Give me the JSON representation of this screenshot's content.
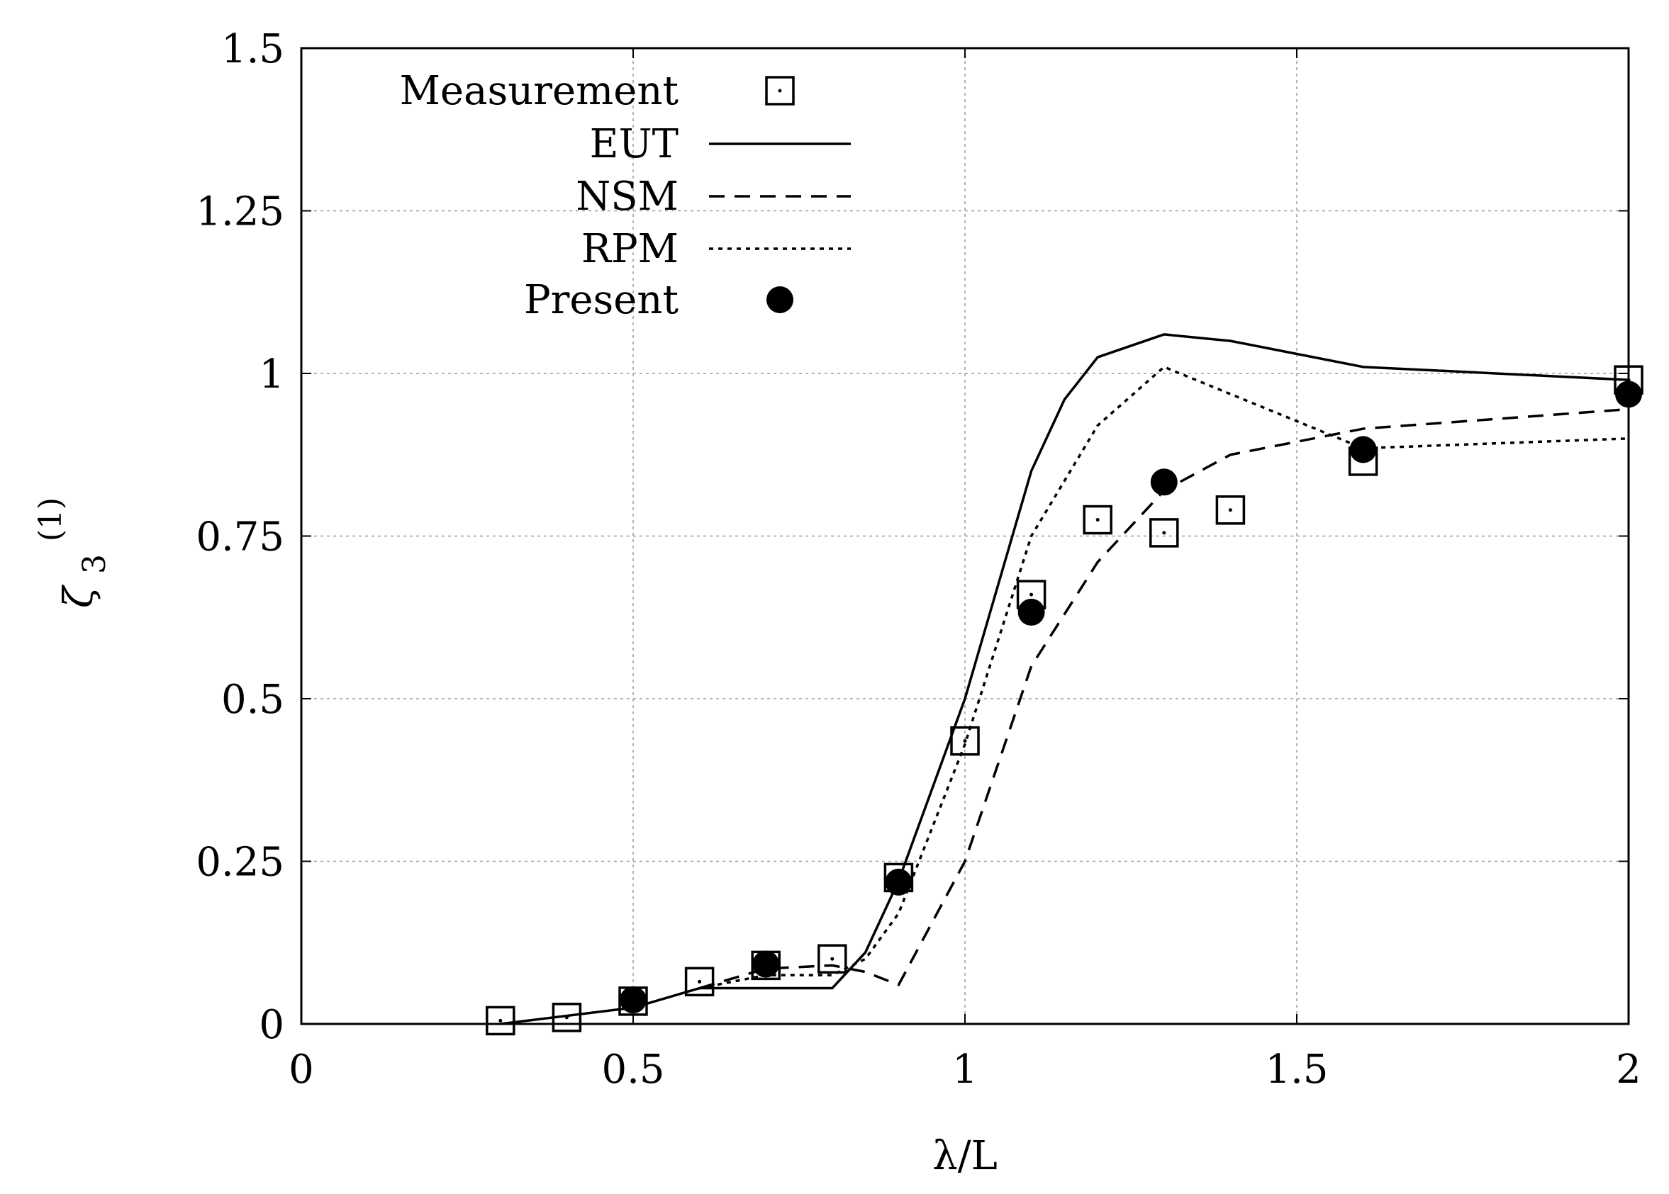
{
  "chart_data": {
    "type": "line",
    "title": "",
    "xlabel": "λ/L",
    "ylabel": {
      "base": "ζ",
      "subscript": "3",
      "superscript": "(1)"
    },
    "xlim": [
      0,
      2
    ],
    "ylim": [
      0,
      1.5
    ],
    "grid": true,
    "legend_position": "top-left",
    "x_ticks": [
      {
        "value": 0,
        "label": "0"
      },
      {
        "value": 0.5,
        "label": "0.5"
      },
      {
        "value": 1,
        "label": "1"
      },
      {
        "value": 1.5,
        "label": "1.5"
      },
      {
        "value": 2,
        "label": "2"
      }
    ],
    "y_ticks": [
      {
        "value": 0,
        "label": "0"
      },
      {
        "value": 0.25,
        "label": "0.25"
      },
      {
        "value": 0.5,
        "label": "0.5"
      },
      {
        "value": 0.75,
        "label": "0.75"
      },
      {
        "value": 1,
        "label": "1"
      },
      {
        "value": 1.25,
        "label": "1.25"
      },
      {
        "value": 1.5,
        "label": "1.5"
      }
    ],
    "series": [
      {
        "name": "Measurement",
        "kind": "marker",
        "marker": "square-dot",
        "x": [
          0.3,
          0.4,
          0.5,
          0.6,
          0.7,
          0.8,
          0.9,
          1.0,
          1.1,
          1.2,
          1.3,
          1.4,
          1.6,
          2.0
        ],
        "y": [
          0.005,
          0.01,
          0.035,
          0.065,
          0.09,
          0.1,
          0.225,
          0.435,
          0.66,
          0.775,
          0.755,
          0.79,
          0.865,
          0.99
        ]
      },
      {
        "name": "EUT",
        "kind": "line",
        "dash": "solid",
        "x": [
          0.3,
          0.5,
          0.6,
          0.65,
          0.8,
          0.85,
          0.9,
          1.0,
          1.1,
          1.15,
          1.2,
          1.3,
          1.4,
          1.6,
          2.0
        ],
        "y": [
          0.0,
          0.025,
          0.055,
          0.055,
          0.055,
          0.11,
          0.22,
          0.5,
          0.85,
          0.96,
          1.025,
          1.06,
          1.05,
          1.01,
          0.99
        ]
      },
      {
        "name": "NSM",
        "kind": "line",
        "dash": "dashed",
        "x": [
          0.6,
          0.7,
          0.8,
          0.85,
          0.9,
          1.0,
          1.1,
          1.2,
          1.3,
          1.4,
          1.6,
          2.0
        ],
        "y": [
          0.055,
          0.085,
          0.09,
          0.08,
          0.06,
          0.25,
          0.55,
          0.71,
          0.82,
          0.875,
          0.915,
          0.945
        ]
      },
      {
        "name": "RPM",
        "kind": "line",
        "dash": "dotted",
        "x": [
          0.6,
          0.7,
          0.8,
          0.85,
          0.9,
          1.0,
          1.1,
          1.2,
          1.3,
          1.6,
          2.0
        ],
        "y": [
          0.055,
          0.075,
          0.075,
          0.1,
          0.17,
          0.43,
          0.75,
          0.92,
          1.01,
          0.885,
          0.9
        ]
      },
      {
        "name": "Present",
        "kind": "marker",
        "marker": "filled-circle",
        "x": [
          0.5,
          0.7,
          0.9,
          1.1,
          1.3,
          1.6,
          2.0
        ],
        "y": [
          0.037,
          0.092,
          0.218,
          0.633,
          0.833,
          0.883,
          0.968
        ]
      }
    ]
  }
}
